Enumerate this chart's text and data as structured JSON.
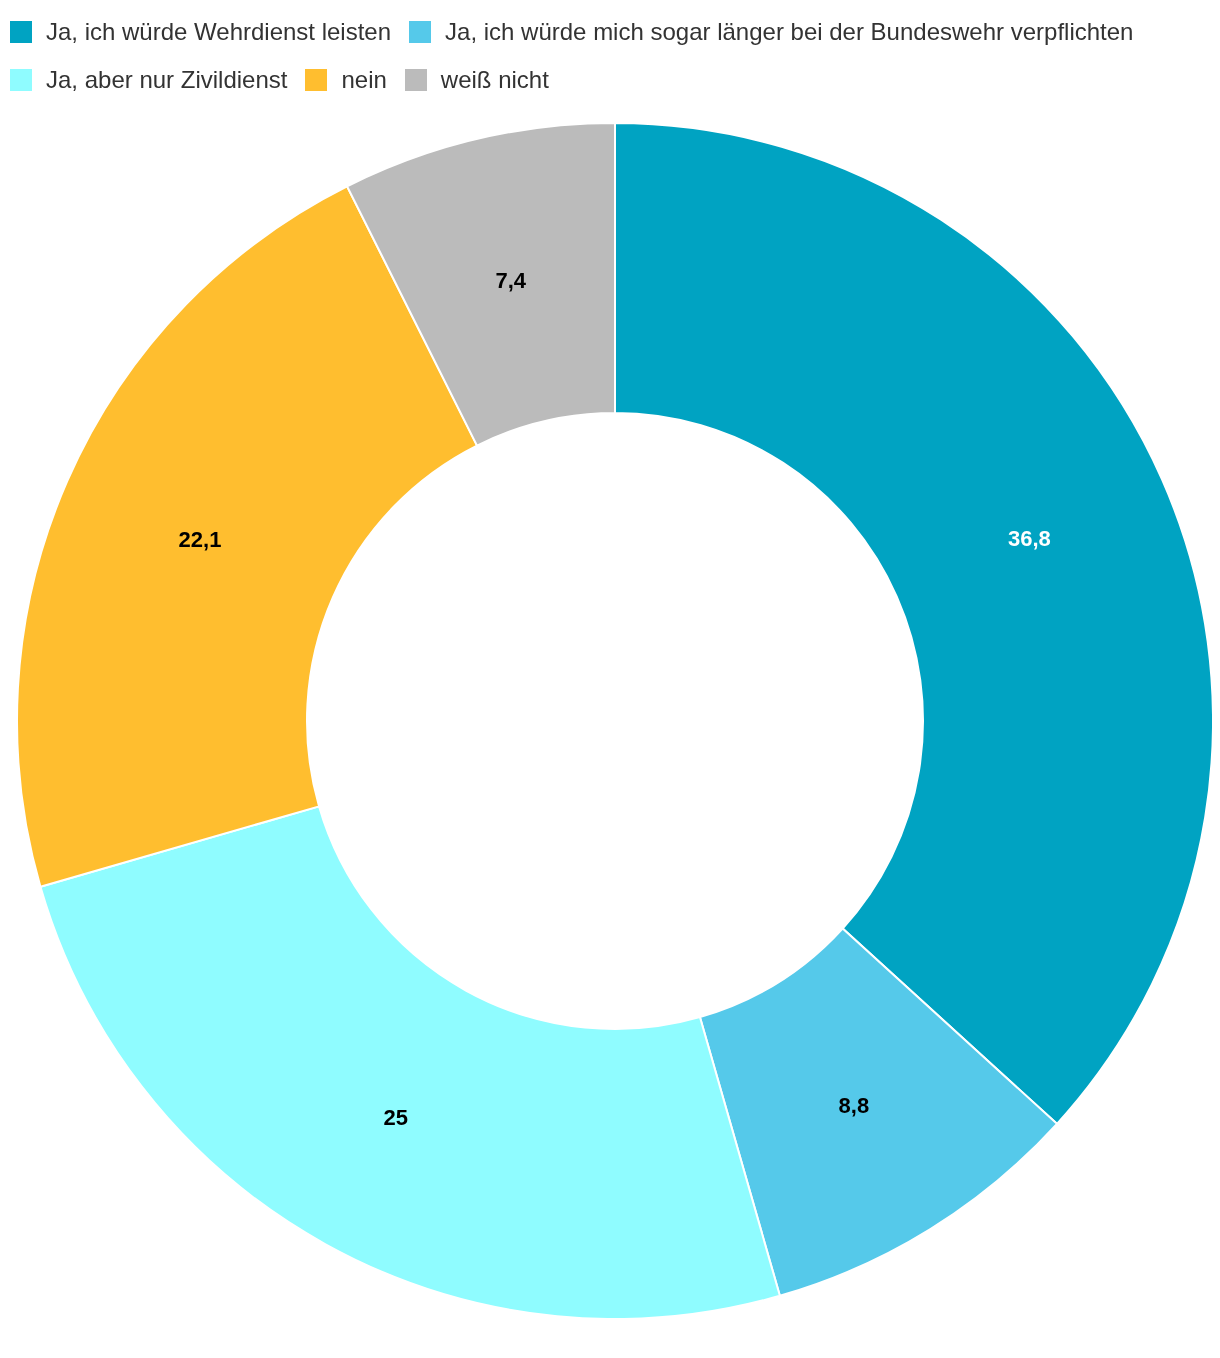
{
  "chart_data": {
    "type": "donut",
    "categories": [
      "Ja, ich würde Wehrdienst leisten",
      "Ja, ich würde mich sogar länger bei der Bundeswehr verpflichten",
      "Ja, aber nur Zivildienst",
      "nein",
      "weiß nicht"
    ],
    "values": [
      36.8,
      8.8,
      25,
      22.1,
      7.4
    ],
    "colors": [
      "#00a3c2",
      "#55c9ea",
      "#8ffcff",
      "#ffbe2f",
      "#bbbbbb"
    ],
    "value_labels": [
      "36,8",
      "8,8",
      "25",
      "22,1",
      "7,4"
    ],
    "legend": "top"
  }
}
